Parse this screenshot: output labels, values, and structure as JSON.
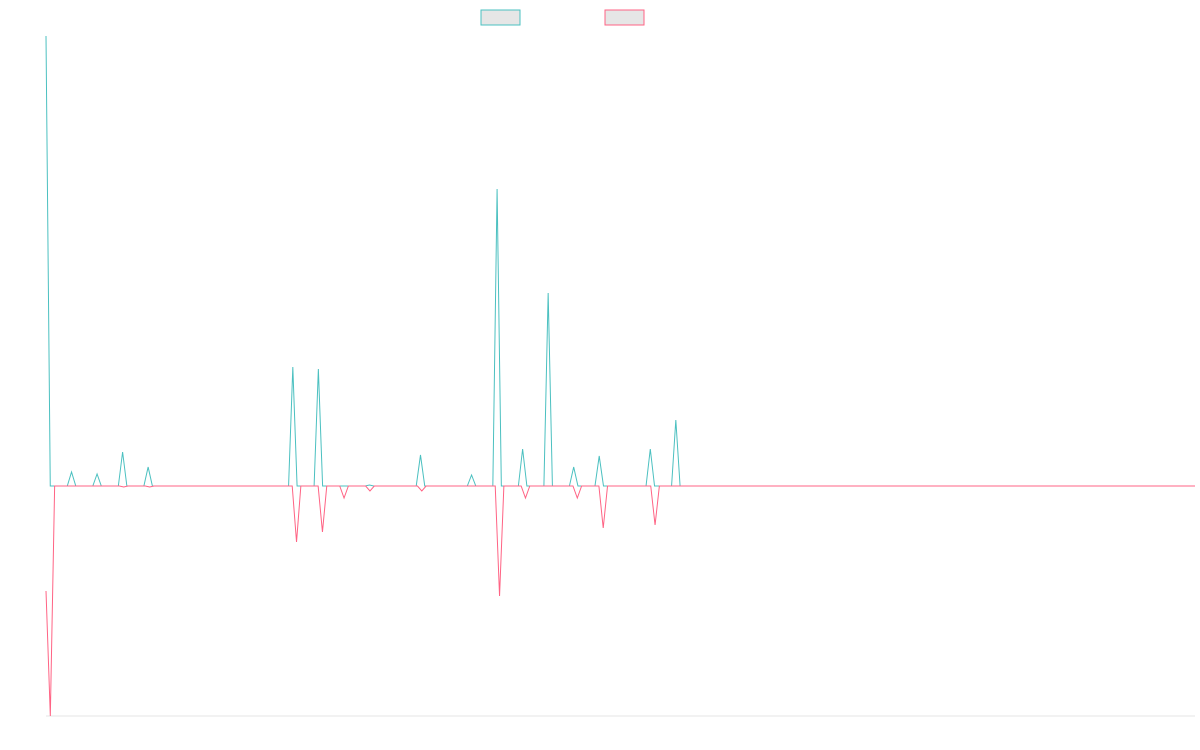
{
  "chart_data": {
    "type": "line",
    "title": "",
    "xlabel": "",
    "ylabel": "",
    "grid": false,
    "legend_position": "top-center",
    "ylim": [
      -230,
      450
    ],
    "series": [
      {
        "name": "",
        "color": "#4bc0c0",
        "fill": "#e6e6e6",
        "values": [
          450,
          0,
          0,
          0,
          0,
          0,
          14,
          0,
          0,
          0,
          0,
          0,
          12,
          0,
          0,
          0,
          0,
          0,
          34,
          0,
          0,
          0,
          0,
          0,
          19,
          0,
          0,
          0,
          0,
          0,
          0,
          0,
          0,
          0,
          0,
          0,
          0,
          0,
          0,
          0,
          0,
          0,
          0,
          0,
          0,
          0,
          0,
          0,
          0,
          0,
          0,
          0,
          0,
          0,
          0,
          0,
          0,
          0,
          119,
          0,
          0,
          0,
          0,
          0,
          117,
          0,
          0,
          0,
          0,
          0,
          0,
          0,
          0,
          0,
          0,
          0,
          1,
          0,
          0,
          0,
          0,
          0,
          0,
          0,
          0,
          0,
          0,
          0,
          31,
          0,
          0,
          0,
          0,
          0,
          0,
          0,
          0,
          0,
          0,
          0,
          11,
          0,
          0,
          0,
          0,
          0,
          297,
          0,
          0,
          0,
          0,
          0,
          37,
          0,
          0,
          0,
          0,
          0,
          193,
          0,
          0,
          0,
          0,
          0,
          19,
          0,
          0,
          0,
          0,
          0,
          30,
          0,
          0,
          0,
          0,
          0,
          0,
          0,
          0,
          0,
          0,
          0,
          37,
          0,
          0,
          0,
          0,
          0,
          66,
          0,
          0,
          0,
          0,
          0,
          0,
          0,
          0,
          0,
          0,
          0,
          0,
          0,
          0,
          0,
          0,
          0,
          0,
          0,
          0,
          0,
          0,
          0,
          0,
          0,
          0,
          0,
          0,
          0,
          0,
          0,
          0,
          0,
          0,
          0,
          0,
          0,
          0,
          0,
          0,
          0,
          0,
          0,
          0,
          0,
          0,
          0,
          0,
          0,
          0,
          0,
          0,
          0,
          0,
          0,
          0,
          0,
          0,
          0,
          0,
          0,
          0,
          0,
          0,
          0,
          0,
          0,
          0,
          0,
          0,
          0,
          0,
          0,
          0,
          0,
          0,
          0,
          0,
          0,
          0,
          0,
          0,
          0,
          0,
          0,
          0,
          0,
          0,
          0,
          0,
          0,
          0,
          0,
          0,
          0,
          0,
          0,
          0,
          0,
          0,
          0,
          0,
          0,
          0,
          0,
          0,
          0,
          0,
          0,
          0,
          0,
          0,
          0,
          0,
          0,
          0,
          0,
          0,
          0,
          0,
          0,
          0
        ]
      },
      {
        "name": "",
        "color": "#ff6384",
        "fill": "#e6e6e6",
        "values": [
          -105,
          -230,
          0,
          0,
          0,
          0,
          0,
          0,
          0,
          0,
          0,
          0,
          0,
          0,
          0,
          0,
          0,
          0,
          -1,
          0,
          0,
          0,
          0,
          0,
          -1,
          0,
          0,
          0,
          0,
          0,
          0,
          0,
          0,
          0,
          0,
          0,
          0,
          0,
          0,
          0,
          0,
          0,
          0,
          0,
          0,
          0,
          0,
          0,
          0,
          0,
          0,
          0,
          0,
          0,
          0,
          0,
          0,
          0,
          -56,
          0,
          0,
          0,
          0,
          0,
          -46,
          0,
          0,
          0,
          0,
          -12,
          0,
          0,
          0,
          0,
          0,
          -5,
          0,
          0,
          0,
          0,
          0,
          0,
          0,
          0,
          0,
          0,
          0,
          -5,
          0,
          0,
          0,
          0,
          0,
          0,
          0,
          0,
          0,
          0,
          0,
          0,
          0,
          0,
          0,
          0,
          0,
          -110,
          0,
          0,
          0,
          0,
          0,
          -12,
          0,
          0,
          0,
          0,
          0,
          0,
          0,
          0,
          0,
          0,
          0,
          -12,
          0,
          0,
          0,
          0,
          0,
          -42,
          0,
          0,
          0,
          0,
          0,
          0,
          0,
          0,
          0,
          0,
          0,
          -39,
          0,
          0,
          0,
          0,
          0,
          0,
          0,
          0,
          0,
          0,
          0,
          0,
          0,
          0,
          0,
          0,
          0,
          0,
          0,
          0,
          0,
          0,
          0,
          0,
          0,
          0,
          0,
          0,
          0,
          0,
          0,
          0,
          0,
          0,
          0,
          0,
          0,
          0,
          0,
          0,
          0,
          0,
          0,
          0,
          0,
          0,
          0,
          0,
          0,
          0,
          0,
          0,
          0,
          0,
          0,
          0,
          0,
          0,
          0,
          0,
          0,
          0,
          0,
          0,
          0,
          0,
          0,
          0,
          0,
          0,
          0,
          0,
          0,
          0,
          0,
          0,
          0,
          0,
          0,
          0,
          0,
          0,
          0,
          0,
          0,
          0,
          0,
          0,
          0,
          0,
          0,
          0,
          0,
          0,
          0,
          0,
          0,
          0,
          0,
          0,
          0,
          0,
          0,
          0,
          0,
          0,
          0,
          0,
          0,
          0,
          0,
          0,
          0,
          0,
          0,
          0,
          0,
          0,
          0,
          0,
          0,
          0,
          0,
          0,
          0
        ]
      }
    ]
  }
}
